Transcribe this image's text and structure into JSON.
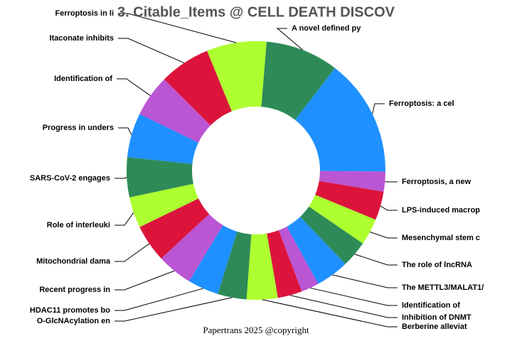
{
  "chart_data": {
    "type": "donut",
    "title": "3. Citable_Items @ CELL DEATH DISCOV",
    "footer": "Papertrans 2025 @copyright",
    "categories": [
      "A novel defined py",
      "Ferroptosis: a cel",
      "Ferroptosis, a new",
      "LPS-induced macrop",
      "Mesenchymal stem c",
      "The role of lncRNA",
      "The METTL3/MALAT1/",
      "Identification of",
      "Inhibition of DNMT",
      "Berberine alleviat",
      "O-GlcNAcylation en",
      "HDAC11 promotes bo",
      "Recent progress in",
      "Mitochondrial dama",
      "Role of interleuki",
      "SARS-CoV-2 engages",
      "Progress in unders",
      "Identification of",
      "Itaconate inhibits",
      "Ferroptosis in li"
    ],
    "values": [
      33,
      53,
      9,
      13,
      12,
      12,
      15,
      8,
      11,
      14,
      13,
      14,
      16,
      17,
      14,
      18,
      20,
      19,
      23,
      27
    ],
    "colors": [
      "#2e8b57",
      "#1e90ff",
      "#ba55d3",
      "#dc143c",
      "#adff2f"
    ]
  }
}
